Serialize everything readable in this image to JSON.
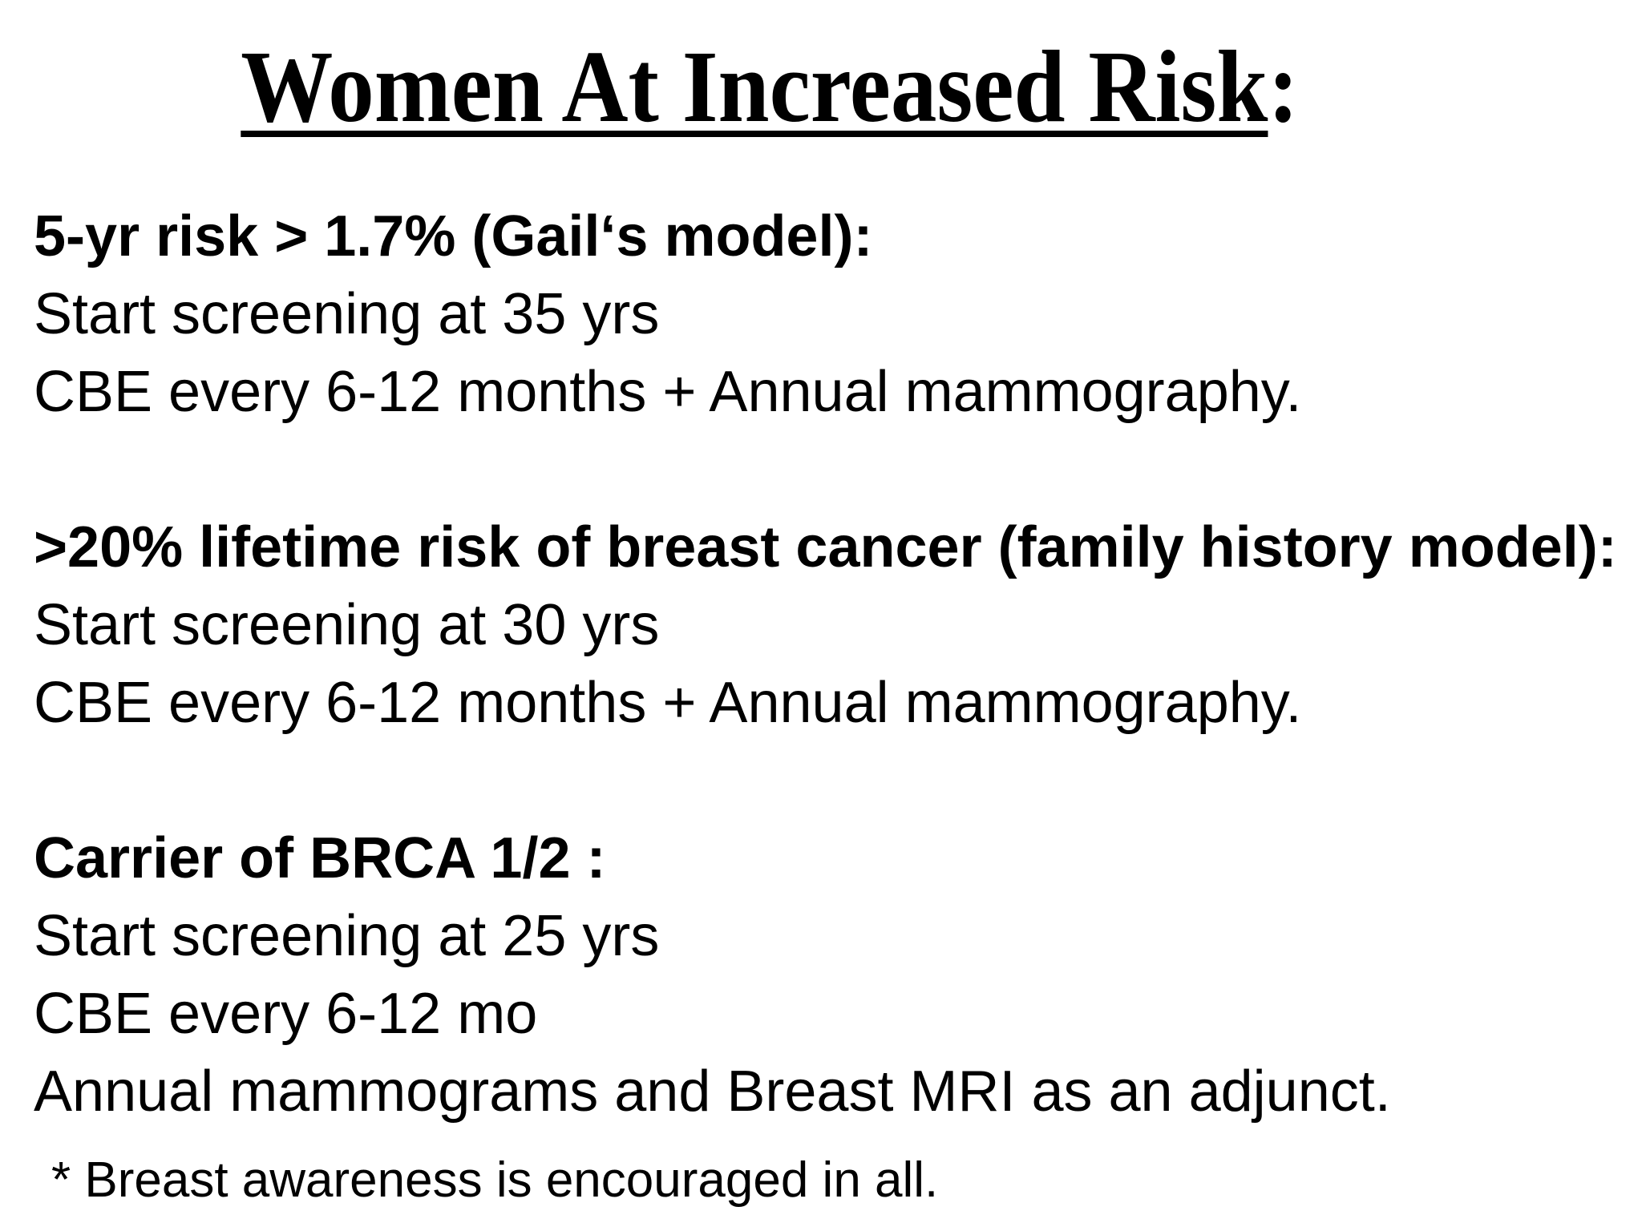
{
  "page": {
    "background_color": "#ffffff",
    "text_color": "#000000"
  },
  "title": {
    "text": "Women At Increased Risk",
    "colon": ":"
  },
  "sections": [
    {
      "heading": "5-yr risk > 1.7% (Gail‘s model):",
      "lines": [
        "Start screening at 35 yrs",
        "CBE every 6-12 months + Annual mammography."
      ]
    },
    {
      "heading": ">20% lifetime risk of breast cancer (family history model):",
      "lines": [
        "Start screening at 30 yrs",
        "CBE every 6-12 months + Annual mammography."
      ]
    },
    {
      "heading": "Carrier of BRCA 1/2 :",
      "lines": [
        "Start screening at 25 yrs",
        "CBE every 6-12 mo",
        "Annual mammograms and Breast MRI as an adjunct."
      ]
    }
  ],
  "footnote": "* Breast awareness is encouraged in all."
}
